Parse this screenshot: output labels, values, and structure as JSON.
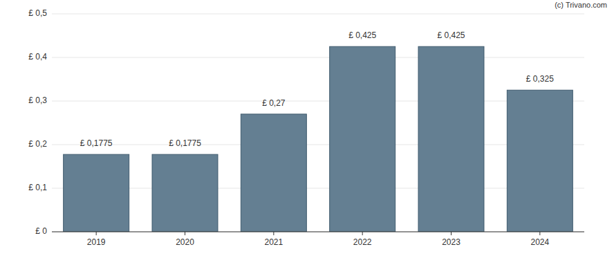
{
  "chart_data": {
    "type": "bar",
    "annotation": "(c) Trivano.com",
    "categories": [
      "2019",
      "2020",
      "2021",
      "2022",
      "2023",
      "2024"
    ],
    "values": [
      0.1775,
      0.1775,
      0.27,
      0.425,
      0.425,
      0.325
    ],
    "value_labels": [
      "£ 0,1775",
      "£ 0,1775",
      "£ 0,27",
      "£ 0,425",
      "£ 0,425",
      "£ 0,325"
    ],
    "data_labels": true,
    "color": "#647f92",
    "ylim": [
      0,
      0.5
    ],
    "yticks": [
      {
        "value": 0,
        "label": "£ 0"
      },
      {
        "value": 0.1,
        "label": "£ 0,1"
      },
      {
        "value": 0.2,
        "label": "£ 0,2"
      },
      {
        "value": 0.3,
        "label": "£ 0,3"
      },
      {
        "value": 0.4,
        "label": "£ 0,4"
      },
      {
        "value": 0.5,
        "label": "£ 0,5"
      }
    ],
    "grid": true
  }
}
